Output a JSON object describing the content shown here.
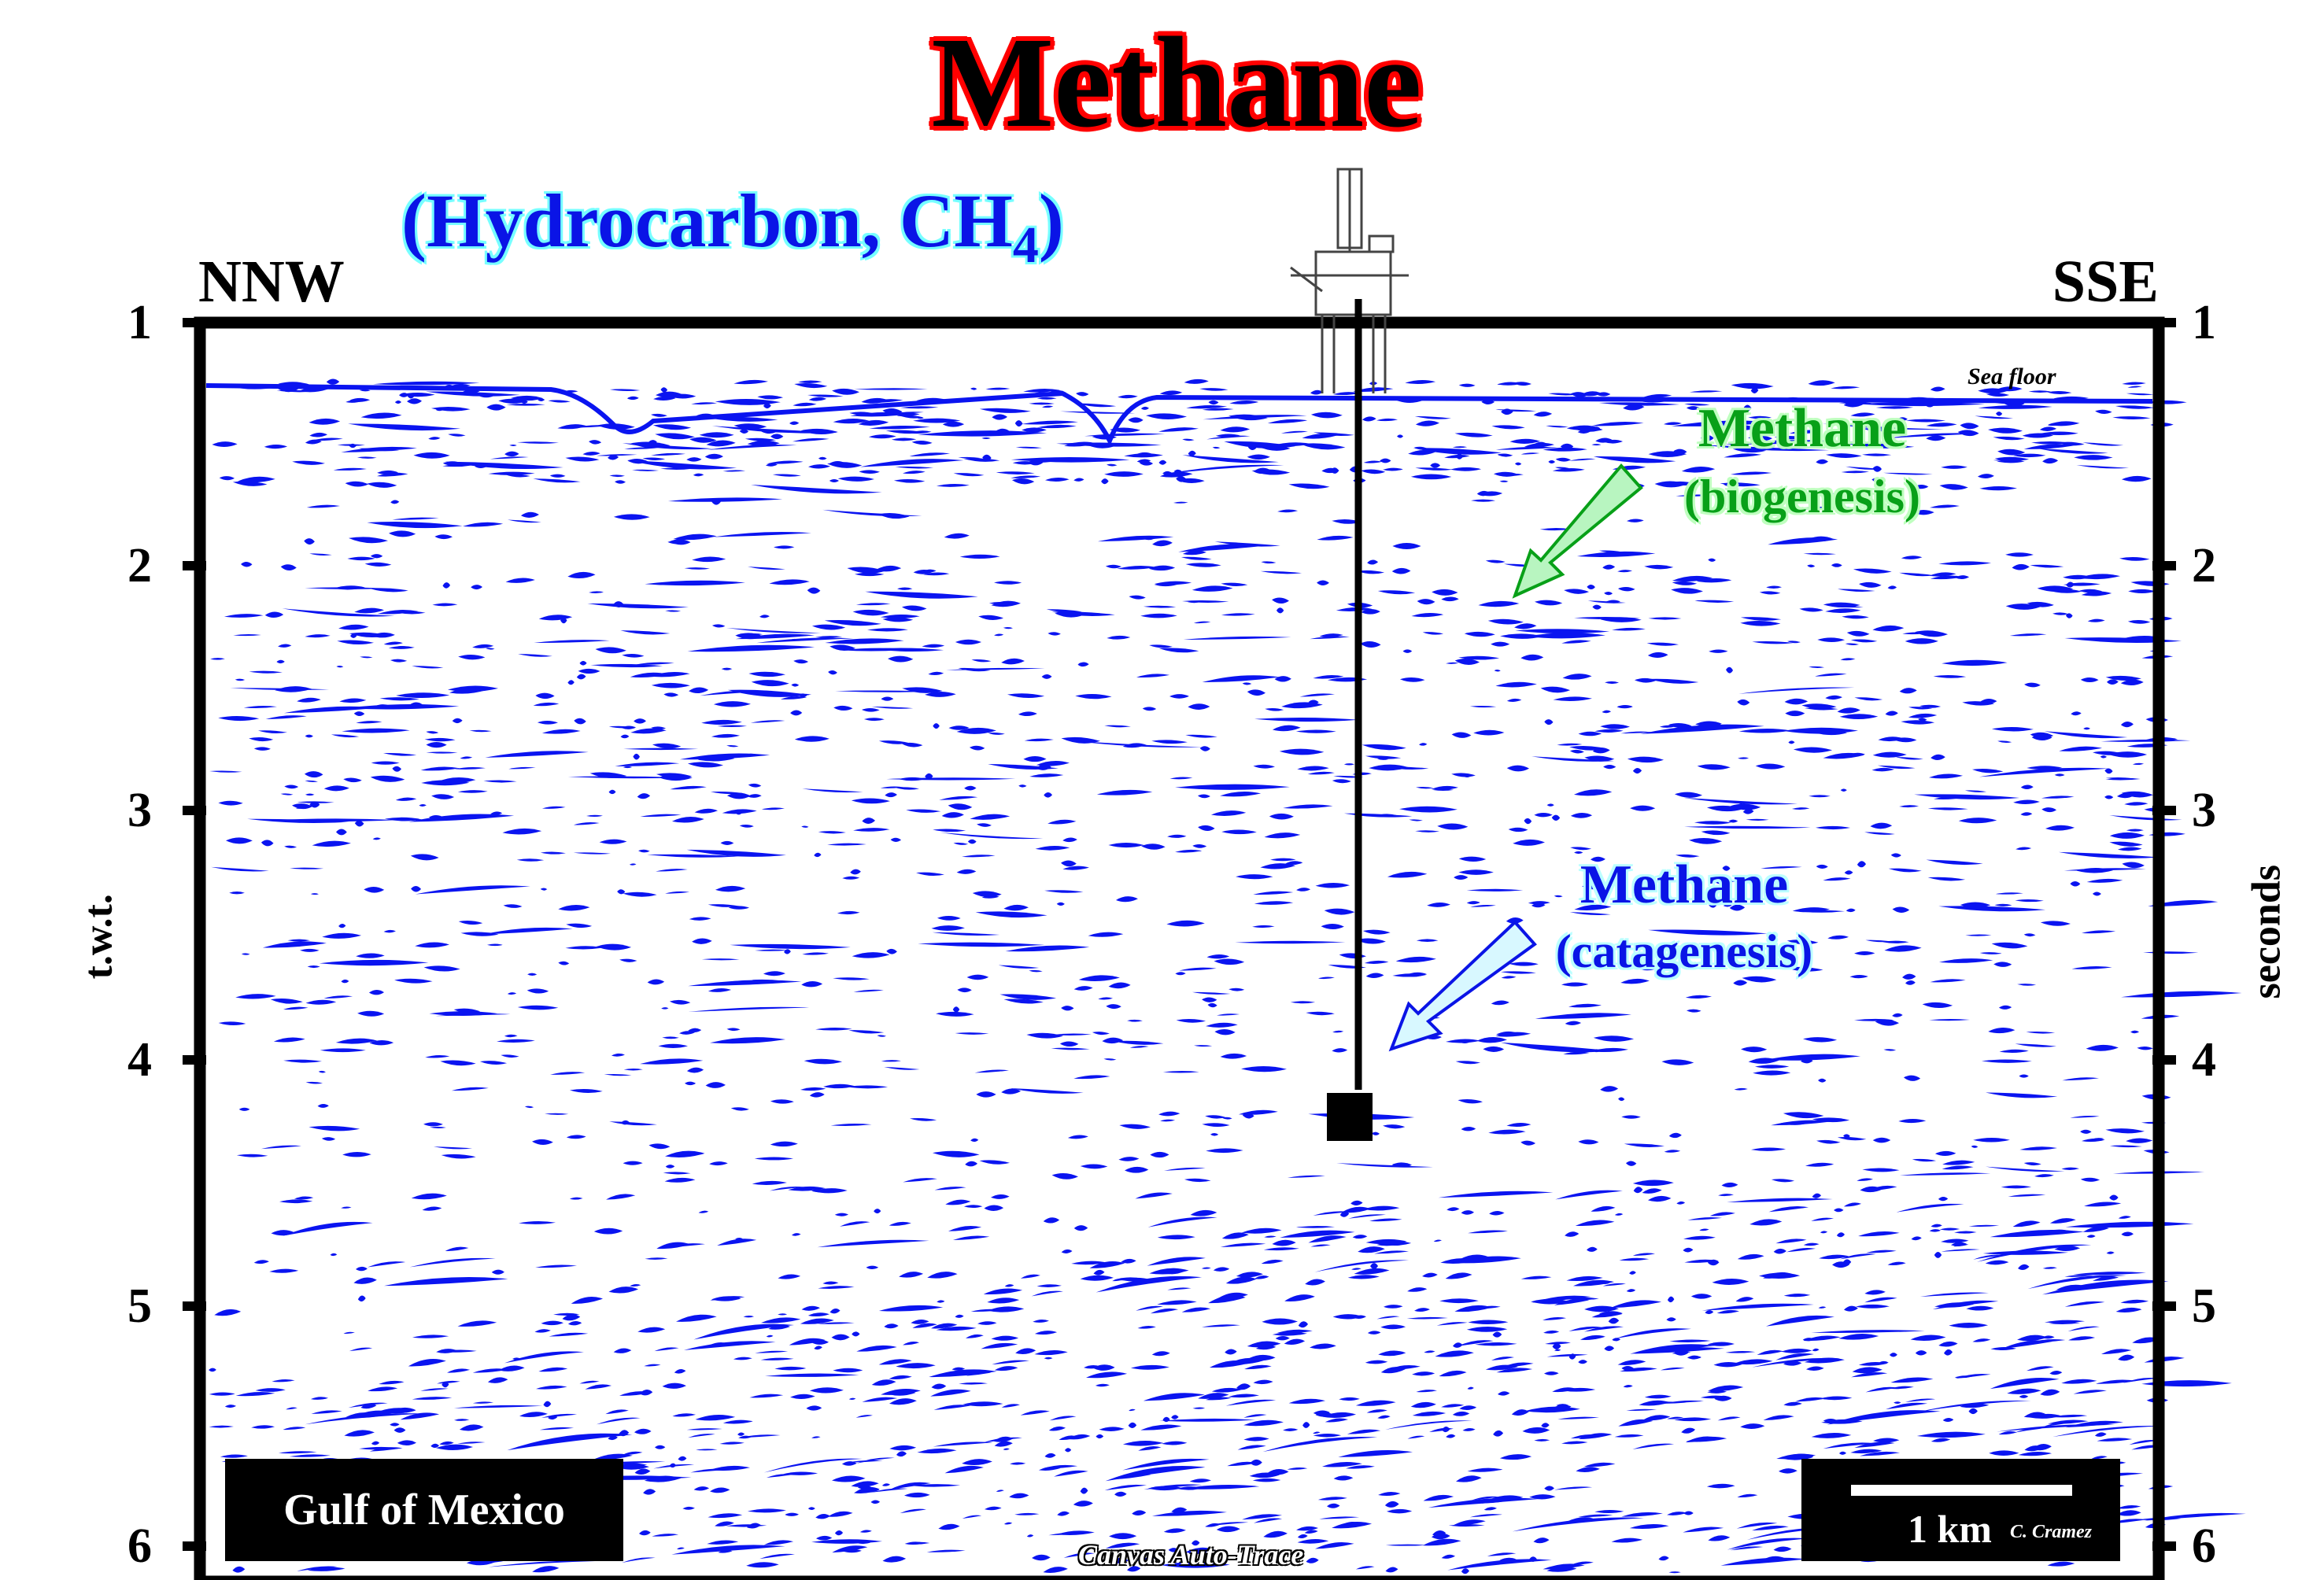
{
  "title": "Methane",
  "subtitle": {
    "main": "(Hydrocarbon, CH",
    "subscript": "4",
    "close": ")"
  },
  "directions": {
    "left": "NNW",
    "right": "SSE"
  },
  "axis": {
    "left_label": "t.w.t.",
    "right_label": "seconds",
    "ticks": [
      "1",
      "2",
      "3",
      "4",
      "5",
      "6"
    ]
  },
  "annotations": {
    "sea_floor": "Sea floor",
    "biogenic": {
      "line1": "Methane",
      "line2": "(biogenesis)",
      "color": "#08a018"
    },
    "catagenic": {
      "line1": "Methane",
      "line2": "(catagenesis)",
      "color": "#0a14e6"
    }
  },
  "location_label": "Gulf of Mexico",
  "scale_bar": {
    "label": "1 km",
    "author": "C. Cramez"
  },
  "watermark": "Canvas  Auto-Trace",
  "colors": {
    "reflectors": "#0a14f0",
    "title_outline": "#ff0000",
    "frame": "#000000"
  },
  "icons": {
    "rig": "offshore-platform-icon"
  }
}
